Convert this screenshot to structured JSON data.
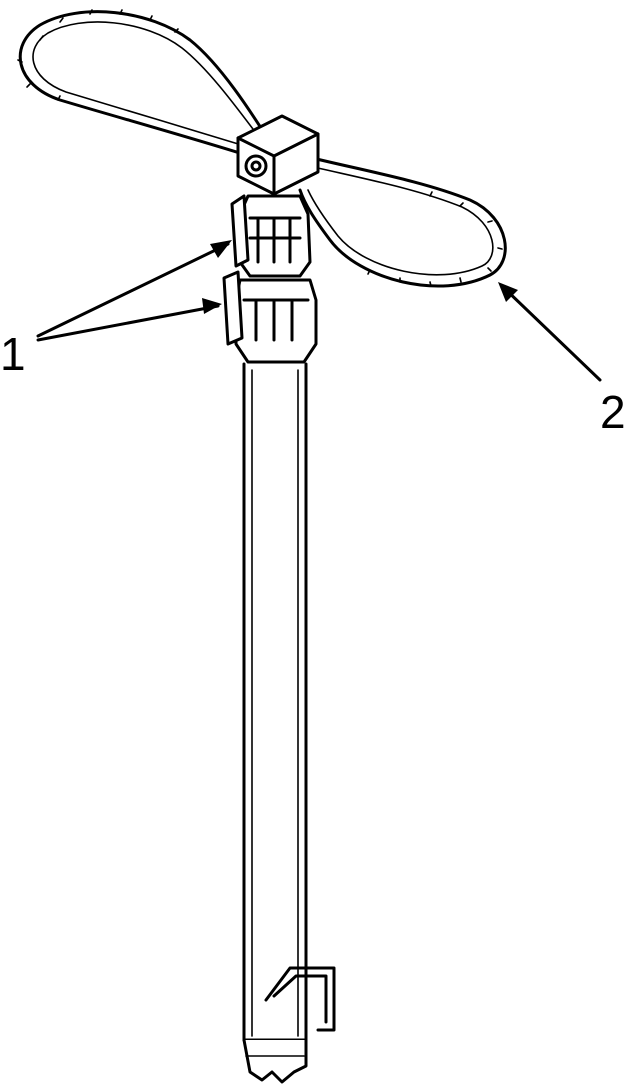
{
  "callouts": [
    {
      "label": "1",
      "target": "clamp-locks"
    },
    {
      "label": "2",
      "target": "rope-loop"
    }
  ],
  "colors": {
    "line": "#000000",
    "background": "#ffffff"
  }
}
